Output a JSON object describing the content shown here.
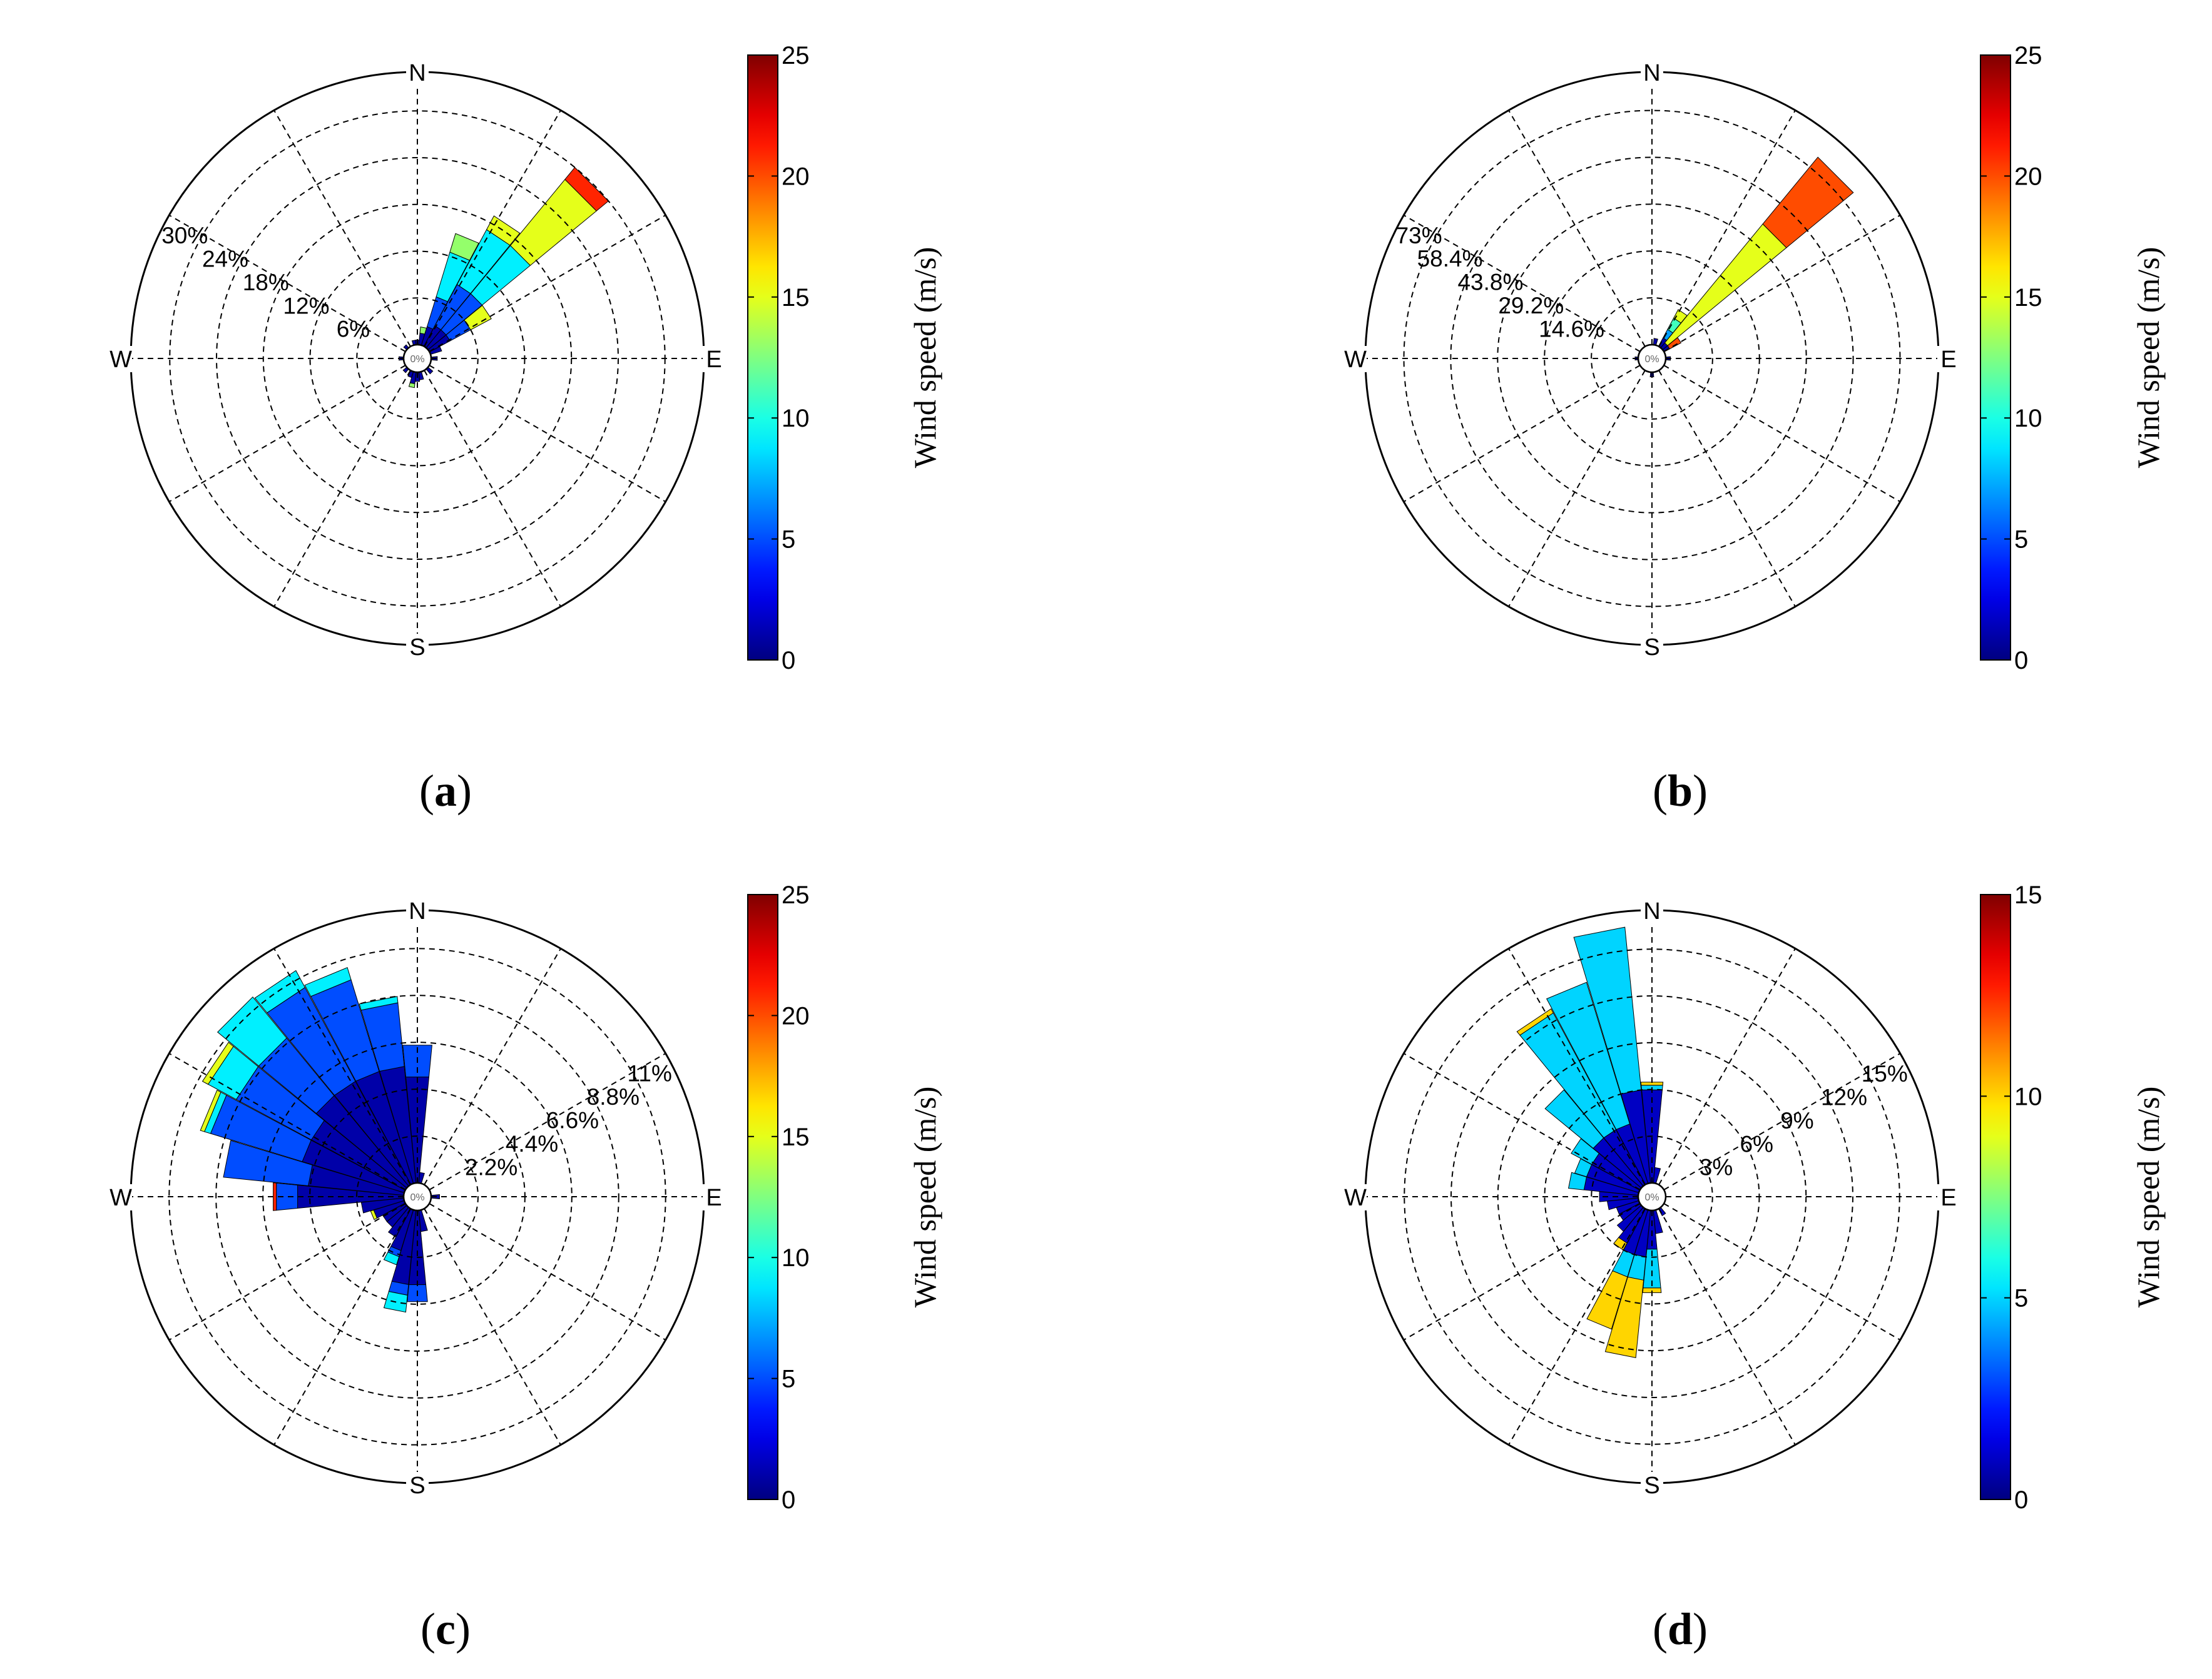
{
  "chart_data": [
    {
      "type": "polar-bar",
      "panel_label": "a",
      "directions": [
        "N",
        "E",
        "S",
        "W"
      ],
      "center_label": "0%",
      "ring_labels": [
        "6%",
        "12%",
        "18%",
        "24%",
        "30%"
      ],
      "ring_values": [
        6,
        12,
        18,
        24,
        30
      ],
      "rmax": 35,
      "ring_label_angle": 300,
      "colorbar": {
        "title": "Wind speed (m/s)",
        "ticks": [
          "0",
          "5",
          "10",
          "15",
          "20",
          "25"
        ],
        "min": 0,
        "max": 25
      },
      "sectors": [
        {
          "angle": 0,
          "segments": [
            {
              "speed": 1,
              "pct": 0.6
            }
          ]
        },
        {
          "angle": 11.25,
          "segments": [
            {
              "speed": 1,
              "pct": 1.5
            },
            {
              "speed": 13,
              "pct": 0.8
            }
          ]
        },
        {
          "angle": 22.5,
          "segments": [
            {
              "speed": 1,
              "pct": 2.5
            },
            {
              "speed": 5,
              "pct": 4
            },
            {
              "speed": 9,
              "pct": 6
            },
            {
              "speed": 13,
              "pct": 2.5
            }
          ]
        },
        {
          "angle": 33.75,
          "segments": [
            {
              "speed": 1,
              "pct": 3
            },
            {
              "speed": 5,
              "pct": 6
            },
            {
              "speed": 9,
              "pct": 8
            },
            {
              "speed": 15,
              "pct": 2
            }
          ]
        },
        {
          "angle": 45,
          "segments": [
            {
              "speed": 1,
              "pct": 3
            },
            {
              "speed": 5,
              "pct": 6
            },
            {
              "speed": 9,
              "pct": 8
            },
            {
              "speed": 15,
              "pct": 11
            },
            {
              "speed": 21,
              "pct": 2
            }
          ]
        },
        {
          "angle": 56.25,
          "segments": [
            {
              "speed": 1,
              "pct": 3
            },
            {
              "speed": 5,
              "pct": 3
            },
            {
              "speed": 15,
              "pct": 3
            }
          ]
        },
        {
          "angle": 67.5,
          "segments": [
            {
              "speed": 1,
              "pct": 1.5
            }
          ]
        },
        {
          "angle": 90,
          "segments": [
            {
              "speed": 1,
              "pct": 0.8
            }
          ]
        },
        {
          "angle": 135,
          "segments": [
            {
              "speed": 1,
              "pct": 0.8
            }
          ]
        },
        {
          "angle": 168.75,
          "segments": [
            {
              "speed": 1,
              "pct": 1.0
            }
          ]
        },
        {
          "angle": 180,
          "segments": [
            {
              "speed": 1,
              "pct": 1.2
            }
          ]
        },
        {
          "angle": 191.25,
          "segments": [
            {
              "speed": 1,
              "pct": 1.5
            },
            {
              "speed": 13,
              "pct": 0.5
            }
          ]
        },
        {
          "angle": 202.5,
          "segments": [
            {
              "speed": 1,
              "pct": 0.8
            }
          ]
        },
        {
          "angle": 225,
          "segments": [
            {
              "speed": 1,
              "pct": 0.6
            }
          ]
        },
        {
          "angle": 270,
          "segments": [
            {
              "speed": 1,
              "pct": 0.6
            }
          ]
        },
        {
          "angle": 315,
          "segments": [
            {
              "speed": 1,
              "pct": 0.5
            }
          ]
        },
        {
          "angle": 348.75,
          "segments": [
            {
              "speed": 1,
              "pct": 0.6
            }
          ]
        }
      ]
    },
    {
      "type": "polar-bar",
      "panel_label": "b",
      "directions": [
        "N",
        "E",
        "S",
        "W"
      ],
      "center_label": "0%",
      "ring_labels": [
        "14.6%",
        "29.2%",
        "43.8%",
        "58.4%",
        "73%"
      ],
      "ring_values": [
        14.6,
        29.2,
        43.8,
        58.4,
        73
      ],
      "rmax": 85,
      "ring_label_angle": 300,
      "colorbar": {
        "title": "Wind speed (m/s)",
        "ticks": [
          "0",
          "5",
          "10",
          "15",
          "20",
          "25"
        ],
        "min": 0,
        "max": 25
      },
      "sectors": [
        {
          "angle": 11.25,
          "segments": [
            {
              "speed": 1,
              "pct": 2
            }
          ]
        },
        {
          "angle": 33.75,
          "segments": [
            {
              "speed": 1,
              "pct": 3
            },
            {
              "speed": 7,
              "pct": 3
            },
            {
              "speed": 11,
              "pct": 4
            },
            {
              "speed": 15,
              "pct": 3
            }
          ]
        },
        {
          "angle": 45,
          "segments": [
            {
              "speed": 1,
              "pct": 2
            },
            {
              "speed": 15,
              "pct": 48
            },
            {
              "speed": 20,
              "pct": 27
            }
          ]
        },
        {
          "angle": 56.25,
          "segments": [
            {
              "speed": 1,
              "pct": 2
            },
            {
              "speed": 20,
              "pct": 4
            }
          ]
        },
        {
          "angle": 90,
          "segments": [
            {
              "speed": 1,
              "pct": 1.5
            }
          ]
        },
        {
          "angle": 180,
          "segments": [
            {
              "speed": 1,
              "pct": 1.5
            }
          ]
        },
        {
          "angle": 270,
          "segments": [
            {
              "speed": 1,
              "pct": 1.0
            }
          ]
        }
      ]
    },
    {
      "type": "polar-bar",
      "panel_label": "c",
      "directions": [
        "N",
        "E",
        "S",
        "W"
      ],
      "center_label": "0%",
      "ring_labels": [
        "2.2%",
        "4.4%",
        "6.6%",
        "8.8%",
        "11%"
      ],
      "ring_values": [
        2.2,
        4.4,
        6.6,
        8.8,
        11
      ],
      "rmax": 12.8,
      "ring_label_angle": 60,
      "colorbar": {
        "title": "Wind speed (m/s)",
        "ticks": [
          "0",
          "5",
          "10",
          "15",
          "20",
          "25"
        ],
        "min": 0,
        "max": 25
      },
      "sectors": [
        {
          "angle": 0,
          "segments": [
            {
              "speed": 1,
              "pct": 5
            },
            {
              "speed": 5,
              "pct": 1.5
            }
          ]
        },
        {
          "angle": 348.75,
          "segments": [
            {
              "speed": 1,
              "pct": 5.5
            },
            {
              "speed": 5,
              "pct": 3
            },
            {
              "speed": 9,
              "pct": 0.3
            }
          ]
        },
        {
          "angle": 337.5,
          "segments": [
            {
              "speed": 1,
              "pct": 5.5
            },
            {
              "speed": 5,
              "pct": 4.5
            },
            {
              "speed": 9,
              "pct": 0.6
            }
          ]
        },
        {
          "angle": 326.25,
          "segments": [
            {
              "speed": 1,
              "pct": 5.5
            },
            {
              "speed": 5,
              "pct": 5
            },
            {
              "speed": 9,
              "pct": 0.9
            }
          ]
        },
        {
          "angle": 315,
          "segments": [
            {
              "speed": 1,
              "pct": 5.5
            },
            {
              "speed": 5,
              "pct": 3.5
            },
            {
              "speed": 9,
              "pct": 2.5
            }
          ]
        },
        {
          "angle": 303.75,
          "segments": [
            {
              "speed": 1,
              "pct": 5
            },
            {
              "speed": 5,
              "pct": 4
            },
            {
              "speed": 9,
              "pct": 1.5
            },
            {
              "speed": 15,
              "pct": 0.3
            }
          ]
        },
        {
          "angle": 292.5,
          "segments": [
            {
              "speed": 1,
              "pct": 5
            },
            {
              "speed": 5,
              "pct": 4.5
            },
            {
              "speed": 9,
              "pct": 0.3
            },
            {
              "speed": 15,
              "pct": 0.2
            }
          ]
        },
        {
          "angle": 281.25,
          "segments": [
            {
              "speed": 1,
              "pct": 4.5
            },
            {
              "speed": 5,
              "pct": 4
            }
          ]
        },
        {
          "angle": 270,
          "segments": [
            {
              "speed": 1,
              "pct": 5
            },
            {
              "speed": 5,
              "pct": 1
            },
            {
              "speed": 21,
              "pct": 0.15
            }
          ]
        },
        {
          "angle": 258.75,
          "segments": [
            {
              "speed": 1,
              "pct": 2
            }
          ]
        },
        {
          "angle": 247.5,
          "segments": [
            {
              "speed": 1,
              "pct": 1.5
            },
            {
              "speed": 15,
              "pct": 0.15
            }
          ]
        },
        {
          "angle": 236.25,
          "segments": [
            {
              "speed": 1,
              "pct": 1.2
            }
          ]
        },
        {
          "angle": 225,
          "segments": [
            {
              "speed": 1,
              "pct": 1.2
            }
          ]
        },
        {
          "angle": 213.75,
          "segments": [
            {
              "speed": 1,
              "pct": 1.5
            }
          ]
        },
        {
          "angle": 202.5,
          "segments": [
            {
              "speed": 1,
              "pct": 2
            },
            {
              "speed": 5,
              "pct": 0.3
            },
            {
              "speed": 9,
              "pct": 0.4
            }
          ]
        },
        {
          "angle": 191.25,
          "segments": [
            {
              "speed": 1,
              "pct": 3.5
            },
            {
              "speed": 5,
              "pct": 0.5
            },
            {
              "speed": 9,
              "pct": 0.8
            }
          ]
        },
        {
          "angle": 180,
          "segments": [
            {
              "speed": 1,
              "pct": 3.5
            },
            {
              "speed": 5,
              "pct": 0.8
            }
          ]
        },
        {
          "angle": 168.75,
          "segments": [
            {
              "speed": 1,
              "pct": 1
            }
          ]
        },
        {
          "angle": 11.25,
          "segments": [
            {
              "speed": 1,
              "pct": 0.5
            }
          ]
        },
        {
          "angle": 90,
          "segments": [
            {
              "speed": 1,
              "pct": 0.4
            }
          ]
        }
      ]
    },
    {
      "type": "polar-bar",
      "panel_label": "d",
      "directions": [
        "N",
        "E",
        "S",
        "W"
      ],
      "center_label": "0%",
      "ring_labels": [
        "3%",
        "6%",
        "9%",
        "12%",
        "15%"
      ],
      "ring_values": [
        3,
        6,
        9,
        12,
        15
      ],
      "rmax": 17.5,
      "ring_label_angle": 60,
      "colorbar": {
        "title": "Wind speed (m/s)",
        "ticks": [
          "0",
          "5",
          "10",
          "15"
        ],
        "min": 0,
        "max": 15
      },
      "sectors": [
        {
          "angle": 0,
          "segments": [
            {
              "speed": 1,
              "pct": 6
            },
            {
              "speed": 5,
              "pct": 0.3
            },
            {
              "speed": 10,
              "pct": 0.2
            }
          ]
        },
        {
          "angle": 348.75,
          "segments": [
            {
              "speed": 1,
              "pct": 6
            },
            {
              "speed": 5,
              "pct": 10.5
            }
          ]
        },
        {
          "angle": 337.5,
          "segments": [
            {
              "speed": 1,
              "pct": 4
            },
            {
              "speed": 5,
              "pct": 9.5
            }
          ]
        },
        {
          "angle": 326.25,
          "segments": [
            {
              "speed": 1,
              "pct": 4
            },
            {
              "speed": 5,
              "pct": 8.5
            },
            {
              "speed": 10,
              "pct": 0.3
            }
          ]
        },
        {
          "angle": 315,
          "segments": [
            {
              "speed": 1,
              "pct": 4
            },
            {
              "speed": 5,
              "pct": 4
            }
          ]
        },
        {
          "angle": 303.75,
          "segments": [
            {
              "speed": 1,
              "pct": 3.5
            },
            {
              "speed": 5,
              "pct": 1.5
            }
          ]
        },
        {
          "angle": 292.5,
          "segments": [
            {
              "speed": 1,
              "pct": 3.5
            },
            {
              "speed": 5,
              "pct": 0.8
            }
          ]
        },
        {
          "angle": 281.25,
          "segments": [
            {
              "speed": 1,
              "pct": 3.5
            },
            {
              "speed": 5,
              "pct": 1.0
            }
          ]
        },
        {
          "angle": 270,
          "segments": [
            {
              "speed": 1,
              "pct": 2.5
            }
          ]
        },
        {
          "angle": 258.75,
          "segments": [
            {
              "speed": 1,
              "pct": 2
            }
          ]
        },
        {
          "angle": 247.5,
          "segments": [
            {
              "speed": 1,
              "pct": 1.5
            }
          ]
        },
        {
          "angle": 236.25,
          "segments": [
            {
              "speed": 1,
              "pct": 1.5
            }
          ]
        },
        {
          "angle": 225,
          "segments": [
            {
              "speed": 1,
              "pct": 2
            }
          ]
        },
        {
          "angle": 213.75,
          "segments": [
            {
              "speed": 1,
              "pct": 2.5
            },
            {
              "speed": 10,
              "pct": 0.5
            }
          ]
        },
        {
          "angle": 202.5,
          "segments": [
            {
              "speed": 1,
              "pct": 3
            },
            {
              "speed": 5,
              "pct": 1.5
            },
            {
              "speed": 10,
              "pct": 3.5
            }
          ]
        },
        {
          "angle": 191.25,
          "segments": [
            {
              "speed": 1,
              "pct": 3
            },
            {
              "speed": 5,
              "pct": 1.5
            },
            {
              "speed": 10,
              "pct": 5
            }
          ]
        },
        {
          "angle": 180,
          "segments": [
            {
              "speed": 1,
              "pct": 2.5
            },
            {
              "speed": 5,
              "pct": 2.5
            },
            {
              "speed": 10,
              "pct": 0.3
            }
          ]
        },
        {
          "angle": 168.75,
          "segments": [
            {
              "speed": 1,
              "pct": 1.5
            }
          ]
        },
        {
          "angle": 11.25,
          "segments": [
            {
              "speed": 1,
              "pct": 1
            }
          ]
        },
        {
          "angle": 146.25,
          "segments": [
            {
              "speed": 1,
              "pct": 0.5
            }
          ]
        }
      ]
    }
  ]
}
